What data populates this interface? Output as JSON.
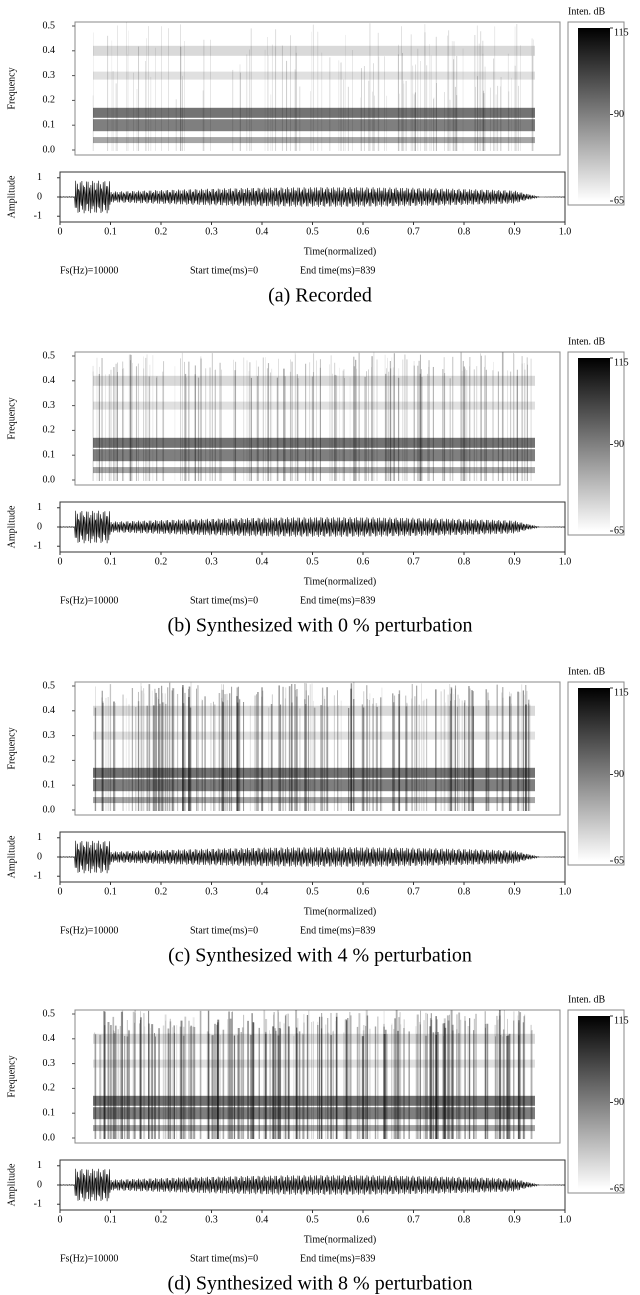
{
  "chart_data": [
    {
      "type": "spectrogram",
      "caption": "(a) Recorded",
      "ylabel": "Frequency",
      "amp_ylabel": "Amplitude",
      "xlabel": "Time(normalized)",
      "ylim": [
        0,
        0.5
      ],
      "yticks": [
        {
          "value": 0,
          "label": "0.0"
        },
        0.1,
        0.2,
        0.3,
        0.4,
        0.5
      ],
      "amp_ylim": [
        -1.3,
        1.3
      ],
      "amp_yticks": [
        -1,
        0,
        1
      ],
      "xlim": [
        0,
        1
      ],
      "xticks": [
        0,
        0.1,
        0.2,
        0.3,
        0.4,
        0.5,
        0.6,
        0.7,
        0.8,
        0.9,
        {
          "value": 1,
          "label": "1.0"
        }
      ],
      "colorbar_title": "Inten. dB",
      "clim": [
        65,
        115
      ],
      "cticks": [
        65,
        90,
        115
      ],
      "info": [
        "Fs(Hz)=10000",
        "Start time(ms)=0",
        "End time(ms)=839"
      ]
    },
    {
      "type": "spectrogram",
      "caption": "(b) Synthesized with 0 % perturbation",
      "ylabel": "Frequency",
      "amp_ylabel": "Amplitude",
      "xlabel": "Time(normalized)",
      "ylim": [
        0,
        0.5
      ],
      "yticks": [
        {
          "value": 0,
          "label": "0.0"
        },
        0.1,
        0.2,
        0.3,
        0.4,
        0.5
      ],
      "amp_ylim": [
        -1.3,
        1.3
      ],
      "amp_yticks": [
        -1,
        0,
        1
      ],
      "xlim": [
        0,
        1
      ],
      "xticks": [
        0,
        0.1,
        0.2,
        0.3,
        0.4,
        0.5,
        0.6,
        0.7,
        0.8,
        0.9,
        {
          "value": 1,
          "label": "1.0"
        }
      ],
      "colorbar_title": "Inten. dB",
      "clim": [
        65,
        115
      ],
      "cticks": [
        65,
        90,
        115
      ],
      "info": [
        "Fs(Hz)=10000",
        "Start time(ms)=0",
        "End time(ms)=839"
      ]
    },
    {
      "type": "spectrogram",
      "caption": "(c) Synthesized with 4 % perturbation",
      "ylabel": "Frequency",
      "amp_ylabel": "Amplitude",
      "xlabel": "Time(normalized)",
      "ylim": [
        0,
        0.5
      ],
      "yticks": [
        {
          "value": 0,
          "label": "0.0"
        },
        0.1,
        0.2,
        0.3,
        0.4,
        0.5
      ],
      "amp_ylim": [
        -1.3,
        1.3
      ],
      "amp_yticks": [
        -1,
        0,
        1
      ],
      "xlim": [
        0,
        1
      ],
      "xticks": [
        0,
        0.1,
        0.2,
        0.3,
        0.4,
        0.5,
        0.6,
        0.7,
        0.8,
        0.9,
        {
          "value": 1,
          "label": "1.0"
        }
      ],
      "colorbar_title": "Inten. dB",
      "clim": [
        65,
        115
      ],
      "cticks": [
        65,
        90,
        115
      ],
      "info": [
        "Fs(Hz)=10000",
        "Start time(ms)=0",
        "End time(ms)=839"
      ]
    },
    {
      "type": "spectrogram",
      "caption": "(d) Synthesized with 8 % perturbation",
      "ylabel": "Frequency",
      "amp_ylabel": "Amplitude",
      "xlabel": "Time(normalized)",
      "ylim": [
        0,
        0.5
      ],
      "yticks": [
        {
          "value": 0,
          "label": "0.0"
        },
        0.1,
        0.2,
        0.3,
        0.4,
        0.5
      ],
      "amp_ylim": [
        -1.3,
        1.3
      ],
      "amp_yticks": [
        -1,
        0,
        1
      ],
      "xlim": [
        0,
        1
      ],
      "xticks": [
        0,
        0.1,
        0.2,
        0.3,
        0.4,
        0.5,
        0.6,
        0.7,
        0.8,
        0.9,
        {
          "value": 1,
          "label": "1.0"
        }
      ],
      "colorbar_title": "Inten. dB",
      "clim": [
        65,
        115
      ],
      "cticks": [
        65,
        90,
        115
      ],
      "info": [
        "Fs(Hz)=10000",
        "Start time(ms)=0",
        "End time(ms)=839"
      ]
    }
  ]
}
